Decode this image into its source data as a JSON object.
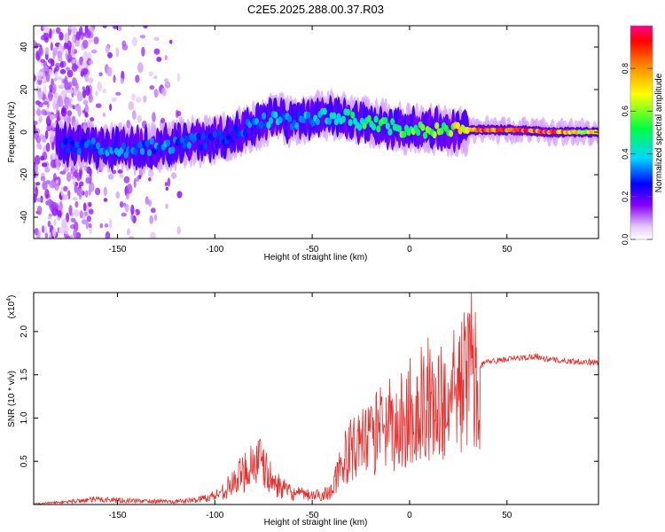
{
  "title": "C2E5.2025.288.00.37.R03",
  "chart_data": [
    {
      "type": "heatmap",
      "name": "spectrogram",
      "xlabel": "Height of straight line (km)",
      "ylabel": "Frequency (Hz)",
      "xlim": [
        -193,
        97
      ],
      "ylim": [
        -50,
        50
      ],
      "xticks": [
        -150,
        -100,
        -50,
        0,
        50
      ],
      "yticks": [
        -40,
        -20,
        0,
        20,
        40
      ],
      "colorbar": {
        "label": "Normalized spectral amplitude",
        "range": [
          0,
          1
        ],
        "ticks": [
          0.0,
          0.2,
          0.4,
          0.6,
          0.8
        ]
      },
      "ridge": [
        {
          "x": -175,
          "y": -6,
          "amp": 0.3
        },
        {
          "x": -160,
          "y": -7,
          "amp": 0.35
        },
        {
          "x": -145,
          "y": -8,
          "amp": 0.35
        },
        {
          "x": -130,
          "y": -7,
          "amp": 0.35
        },
        {
          "x": -115,
          "y": -5,
          "amp": 0.35
        },
        {
          "x": -100,
          "y": -4,
          "amp": 0.3
        },
        {
          "x": -90,
          "y": -1,
          "amp": 0.3
        },
        {
          "x": -80,
          "y": 3,
          "amp": 0.35
        },
        {
          "x": -70,
          "y": 7,
          "amp": 0.4
        },
        {
          "x": -60,
          "y": 5,
          "amp": 0.35
        },
        {
          "x": -50,
          "y": 7,
          "amp": 0.4
        },
        {
          "x": -40,
          "y": 8,
          "amp": 0.45
        },
        {
          "x": -30,
          "y": 6,
          "amp": 0.5
        },
        {
          "x": -20,
          "y": 4,
          "amp": 0.55
        },
        {
          "x": -10,
          "y": 3,
          "amp": 0.55
        },
        {
          "x": 0,
          "y": 1,
          "amp": 0.6
        },
        {
          "x": 10,
          "y": 1,
          "amp": 0.6
        },
        {
          "x": 20,
          "y": 1,
          "amp": 0.65
        },
        {
          "x": 30,
          "y": 1,
          "amp": 0.85
        },
        {
          "x": 40,
          "y": 1,
          "amp": 0.95
        },
        {
          "x": 55,
          "y": 1,
          "amp": 0.95
        },
        {
          "x": 70,
          "y": 0,
          "amp": 0.95
        },
        {
          "x": 85,
          "y": 0,
          "amp": 0.8
        },
        {
          "x": 97,
          "y": 0,
          "amp": 0.7
        }
      ]
    },
    {
      "type": "line",
      "name": "snr",
      "xlabel": "Height of straight line (km)",
      "ylabel": "SNR (10 * v/v)",
      "multiplier": "(x10^4)",
      "multiplier_base": "(x10",
      "multiplier_exp": "4",
      "xlim": [
        -193,
        97
      ],
      "ylim": [
        0,
        2.45
      ],
      "xticks": [
        -150,
        -100,
        -50,
        0,
        50
      ],
      "yticks": [
        0.5,
        1.0,
        1.5,
        2.0
      ],
      "ytick_labels": [
        "0.5",
        "1.0",
        "1.5",
        "2.0"
      ],
      "color": "#e8302e",
      "series": [
        {
          "name": "SNR",
          "x": [
            -193,
            -180,
            -160,
            -140,
            -120,
            -110,
            -100,
            -95,
            -90,
            -85,
            -82,
            -78,
            -75,
            -70,
            -65,
            -60,
            -55,
            -50,
            -45,
            -40,
            -38,
            -35,
            -30,
            -25,
            -20,
            -15,
            -10,
            -5,
            0,
            5,
            10,
            15,
            20,
            25,
            28,
            30,
            33,
            35,
            40,
            50,
            60,
            65,
            70,
            80,
            90,
            97
          ],
          "y": [
            0.01,
            0.03,
            0.07,
            0.05,
            0.04,
            0.06,
            0.12,
            0.2,
            0.3,
            0.45,
            0.55,
            0.6,
            0.5,
            0.3,
            0.22,
            0.15,
            0.14,
            0.12,
            0.13,
            0.2,
            0.35,
            0.55,
            0.75,
            0.85,
            0.9,
            0.95,
            1.0,
            1.05,
            1.15,
            1.25,
            1.3,
            1.35,
            1.45,
            1.6,
            1.75,
            1.8,
            1.75,
            1.6,
            1.65,
            1.68,
            1.7,
            1.72,
            1.68,
            1.66,
            1.65,
            1.64
          ]
        }
      ]
    }
  ]
}
